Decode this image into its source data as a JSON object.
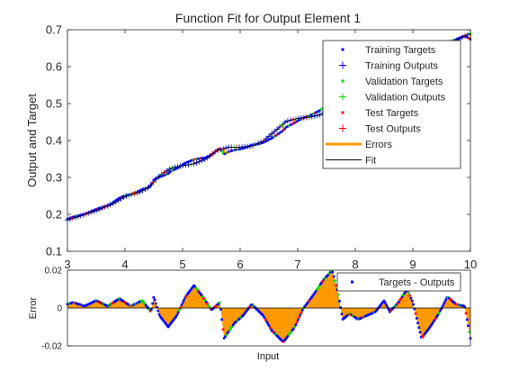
{
  "chart_data": [
    {
      "type": "line",
      "title": "Function Fit for Output Element 1",
      "xlabel": "",
      "ylabel": "Output and Target",
      "xlim": [
        3,
        10
      ],
      "ylim": [
        0.1,
        0.7
      ],
      "xticks": [
        3,
        4,
        5,
        6,
        7,
        8,
        9,
        10
      ],
      "yticks": [
        0.1,
        0.2,
        0.3,
        0.4,
        0.5,
        0.6,
        0.7
      ],
      "legend_position": "top-right",
      "fit_points": [
        [
          3.0,
          0.185
        ],
        [
          3.25,
          0.197
        ],
        [
          3.5,
          0.21
        ],
        [
          3.75,
          0.226
        ],
        [
          4.0,
          0.248
        ],
        [
          4.25,
          0.26
        ],
        [
          4.4,
          0.272
        ],
        [
          4.6,
          0.305
        ],
        [
          4.8,
          0.325
        ],
        [
          5.0,
          0.332
        ],
        [
          5.2,
          0.337
        ],
        [
          5.4,
          0.35
        ],
        [
          5.6,
          0.373
        ],
        [
          5.8,
          0.382
        ],
        [
          6.0,
          0.382
        ],
        [
          6.2,
          0.385
        ],
        [
          6.4,
          0.398
        ],
        [
          6.6,
          0.425
        ],
        [
          6.8,
          0.452
        ],
        [
          7.0,
          0.46
        ],
        [
          7.2,
          0.463
        ],
        [
          7.4,
          0.47
        ],
        [
          7.6,
          0.49
        ],
        [
          7.8,
          0.515
        ],
        [
          8.0,
          0.535
        ],
        [
          8.2,
          0.548
        ],
        [
          8.4,
          0.555
        ],
        [
          8.6,
          0.57
        ],
        [
          8.8,
          0.59
        ],
        [
          9.0,
          0.612
        ],
        [
          9.2,
          0.63
        ],
        [
          9.4,
          0.645
        ],
        [
          9.6,
          0.66
        ],
        [
          9.8,
          0.675
        ],
        [
          10.0,
          0.69
        ]
      ],
      "legend": [
        {
          "key": "training_targets",
          "label": "Training Targets",
          "marker": "dot",
          "color": "#0000ff"
        },
        {
          "key": "training_outputs",
          "label": "Training Outputs",
          "marker": "plus",
          "color": "#0000ff"
        },
        {
          "key": "validation_targets",
          "label": "Validation Targets",
          "marker": "dot",
          "color": "#00dd00"
        },
        {
          "key": "validation_outputs",
          "label": "Validation Outputs",
          "marker": "plus",
          "color": "#00dd00"
        },
        {
          "key": "test_targets",
          "label": "Test Targets",
          "marker": "dot",
          "color": "#ff0000"
        },
        {
          "key": "test_outputs",
          "label": "Test Outputs",
          "marker": "plus",
          "color": "#ff0000"
        },
        {
          "key": "errors",
          "label": "Errors",
          "marker": "thickline",
          "color": "#ff9900"
        },
        {
          "key": "fit",
          "label": "Fit",
          "marker": "line",
          "color": "#000000"
        }
      ]
    },
    {
      "type": "area",
      "xlabel": "Input",
      "ylabel": "Error",
      "xlim": [
        3,
        10
      ],
      "ylim": [
        -0.02,
        0.02
      ],
      "yticks": [
        -0.02,
        0,
        0.02
      ],
      "ytick_labels": [
        "-0.02",
        "0",
        "0.02"
      ],
      "legend_position": "top-right",
      "error_points": [
        [
          3.0,
          0.002
        ],
        [
          3.1,
          0.003
        ],
        [
          3.3,
          0.001
        ],
        [
          3.5,
          0.004
        ],
        [
          3.7,
          0.001
        ],
        [
          3.9,
          0.005
        ],
        [
          4.1,
          0.001
        ],
        [
          4.3,
          0.004
        ],
        [
          4.45,
          -0.002
        ],
        [
          4.5,
          0.006
        ],
        [
          4.6,
          -0.004
        ],
        [
          4.75,
          -0.01
        ],
        [
          4.9,
          -0.004
        ],
        [
          5.05,
          0.006
        ],
        [
          5.2,
          0.012
        ],
        [
          5.35,
          0.006
        ],
        [
          5.5,
          -0.001
        ],
        [
          5.65,
          0.003
        ],
        [
          5.72,
          -0.016
        ],
        [
          5.9,
          -0.008
        ],
        [
          6.05,
          -0.004
        ],
        [
          6.2,
          0.002
        ],
        [
          6.4,
          -0.004
        ],
        [
          6.55,
          -0.012
        ],
        [
          6.75,
          -0.018
        ],
        [
          6.95,
          -0.01
        ],
        [
          7.1,
          0.0
        ],
        [
          7.25,
          0.006
        ],
        [
          7.45,
          0.015
        ],
        [
          7.6,
          0.02
        ],
        [
          7.7,
          0.008
        ],
        [
          7.78,
          -0.006
        ],
        [
          7.9,
          -0.003
        ],
        [
          8.05,
          -0.006
        ],
        [
          8.2,
          -0.004
        ],
        [
          8.35,
          -0.002
        ],
        [
          8.5,
          0.004
        ],
        [
          8.6,
          -0.002
        ],
        [
          8.75,
          0.003
        ],
        [
          8.9,
          0.01
        ],
        [
          9.0,
          0.003
        ],
        [
          9.15,
          -0.016
        ],
        [
          9.3,
          -0.01
        ],
        [
          9.45,
          -0.003
        ],
        [
          9.6,
          0.006
        ],
        [
          9.75,
          0.002
        ],
        [
          9.9,
          0.001
        ],
        [
          10.0,
          -0.016
        ]
      ],
      "legend": [
        {
          "key": "targets_outputs",
          "label": "Targets - Outputs",
          "marker": "dot",
          "color": "#0000ff"
        }
      ]
    }
  ]
}
